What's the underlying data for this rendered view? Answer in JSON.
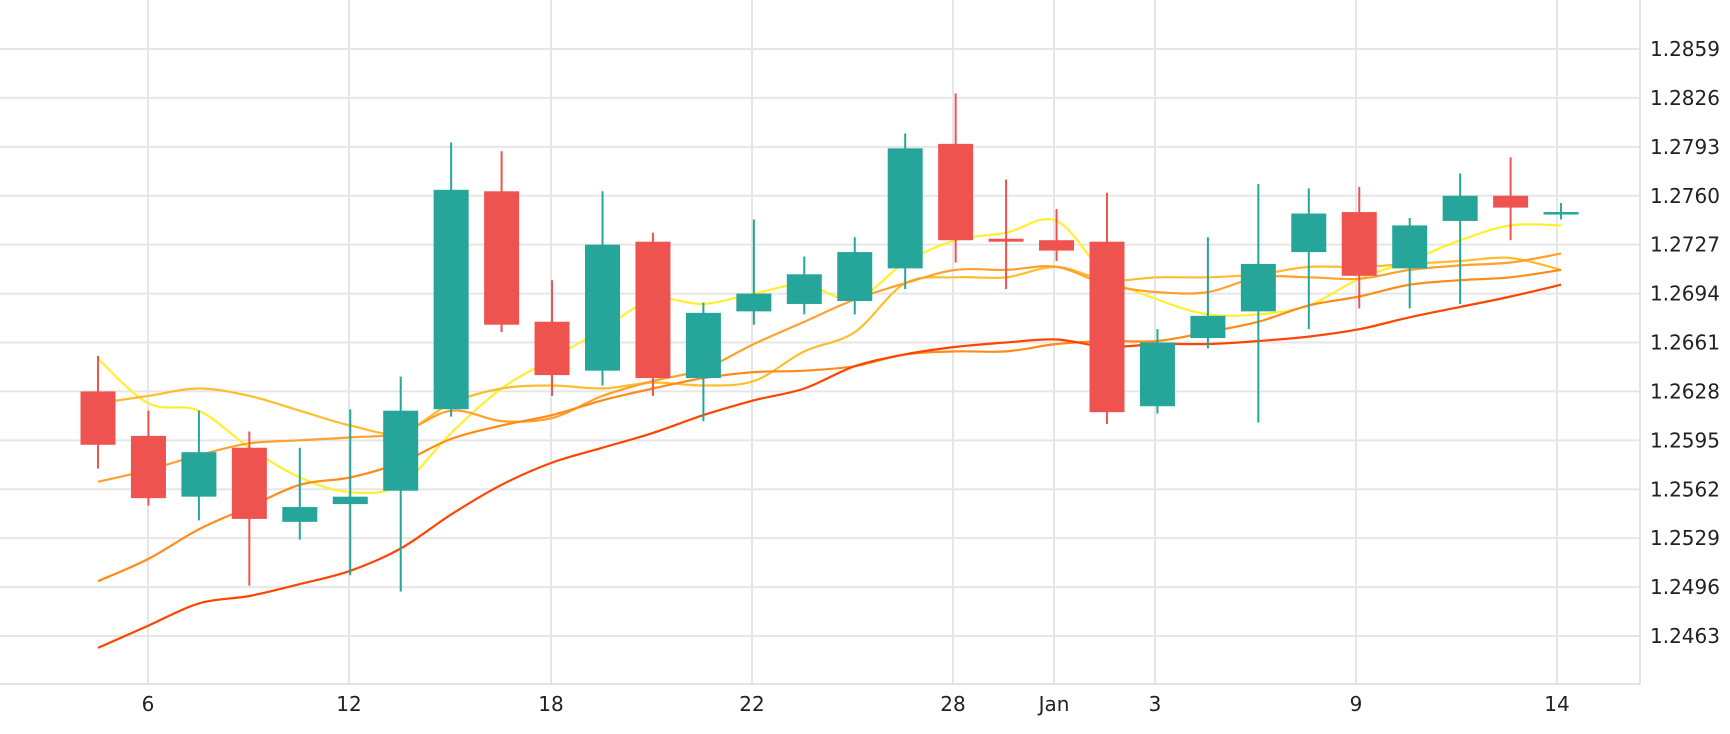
{
  "chart_data": {
    "type": "candlestick",
    "title": "",
    "xlabel": "",
    "ylabel": "",
    "colors": {
      "up": "#26a69a",
      "down": "#ef5350",
      "grid": "#e6e6e6"
    },
    "y_ticks": [
      "1.2463",
      "1.2496",
      "1.2529",
      "1.2562",
      "1.2595",
      "1.2628",
      "1.2661",
      "1.2694",
      "1.2727",
      "1.2760",
      "1.2793",
      "1.2826",
      "1.2859"
    ],
    "y_range": [
      1.243,
      1.2892
    ],
    "x_ticks": [
      {
        "label": "6",
        "at": "Dec 6"
      },
      {
        "label": "12",
        "at": "Dec 12"
      },
      {
        "label": "18",
        "at": "Dec 18"
      },
      {
        "label": "22",
        "at": "Dec 22"
      },
      {
        "label": "28",
        "at": "Dec 28"
      },
      {
        "label": "Jan",
        "at": "Jan 1"
      },
      {
        "label": "3",
        "at": "Jan 3"
      },
      {
        "label": "9",
        "at": "Jan 9"
      },
      {
        "label": "14",
        "at": "Jan 14"
      }
    ],
    "grid": true,
    "candles": [
      {
        "o": 1.2628,
        "h": 1.2652,
        "l": 1.2576,
        "c": 1.2592
      },
      {
        "o": 1.2598,
        "h": 1.2615,
        "l": 1.2551,
        "c": 1.2556
      },
      {
        "o": 1.2557,
        "h": 1.2615,
        "l": 1.2541,
        "c": 1.2587
      },
      {
        "o": 1.259,
        "h": 1.2601,
        "l": 1.2497,
        "c": 1.2542
      },
      {
        "o": 1.254,
        "h": 1.259,
        "l": 1.2528,
        "c": 1.255
      },
      {
        "o": 1.2552,
        "h": 1.2616,
        "l": 1.2504,
        "c": 1.2557
      },
      {
        "o": 1.2561,
        "h": 1.2638,
        "l": 1.2493,
        "c": 1.2615
      },
      {
        "o": 1.2616,
        "h": 1.2796,
        "l": 1.2611,
        "c": 1.2764
      },
      {
        "o": 1.2763,
        "h": 1.279,
        "l": 1.2668,
        "c": 1.2673
      },
      {
        "o": 1.2675,
        "h": 1.2703,
        "l": 1.2625,
        "c": 1.2639
      },
      {
        "o": 1.2642,
        "h": 1.2763,
        "l": 1.2632,
        "c": 1.2727
      },
      {
        "o": 1.2729,
        "h": 1.2735,
        "l": 1.2625,
        "c": 1.2637
      },
      {
        "o": 1.2637,
        "h": 1.2688,
        "l": 1.2608,
        "c": 1.2681
      },
      {
        "o": 1.2682,
        "h": 1.2744,
        "l": 1.2673,
        "c": 1.2694
      },
      {
        "o": 1.2687,
        "h": 1.2719,
        "l": 1.268,
        "c": 1.2707
      },
      {
        "o": 1.2689,
        "h": 1.2732,
        "l": 1.268,
        "c": 1.2722
      },
      {
        "o": 1.2711,
        "h": 1.2802,
        "l": 1.2697,
        "c": 1.2792
      },
      {
        "o": 1.2795,
        "h": 1.2829,
        "l": 1.2715,
        "c": 1.273
      },
      {
        "o": 1.2731,
        "h": 1.2771,
        "l": 1.2697,
        "c": 1.2729
      },
      {
        "o": 1.273,
        "h": 1.2751,
        "l": 1.2716,
        "c": 1.2723
      },
      {
        "o": 1.2729,
        "h": 1.2762,
        "l": 1.2606,
        "c": 1.2614
      },
      {
        "o": 1.2618,
        "h": 1.267,
        "l": 1.2613,
        "c": 1.2661
      },
      {
        "o": 1.2664,
        "h": 1.2732,
        "l": 1.2657,
        "c": 1.2679
      },
      {
        "o": 1.2682,
        "h": 1.2768,
        "l": 1.2607,
        "c": 1.2714
      },
      {
        "o": 1.2722,
        "h": 1.2765,
        "l": 1.267,
        "c": 1.2748
      },
      {
        "o": 1.2749,
        "h": 1.2766,
        "l": 1.2684,
        "c": 1.2706
      },
      {
        "o": 1.2711,
        "h": 1.2745,
        "l": 1.2684,
        "c": 1.274
      },
      {
        "o": 1.2743,
        "h": 1.2775,
        "l": 1.2687,
        "c": 1.276
      },
      {
        "o": 1.276,
        "h": 1.2786,
        "l": 1.273,
        "c": 1.2752
      },
      {
        "o": 1.2749,
        "h": 1.2755,
        "l": 1.2744,
        "c": 1.2749
      }
    ],
    "moving_averages": [
      {
        "color": "#ffef2e",
        "values": [
          1.265,
          1.262,
          1.2615,
          1.259,
          1.257,
          1.256,
          1.2565,
          1.26,
          1.263,
          1.265,
          1.267,
          1.269,
          1.2687,
          1.2694,
          1.27,
          1.269,
          1.2715,
          1.273,
          1.2735,
          1.2743,
          1.2706,
          1.269,
          1.268,
          1.268,
          1.2686,
          1.2704,
          1.2716,
          1.273,
          1.274,
          1.274
        ]
      },
      {
        "color": "#ffbd2e",
        "values": [
          1.262,
          1.2625,
          1.263,
          1.2625,
          1.2615,
          1.2605,
          1.26,
          1.262,
          1.263,
          1.2632,
          1.263,
          1.2634,
          1.2632,
          1.2635,
          1.2655,
          1.2668,
          1.2701,
          1.2705,
          1.2705,
          1.2712,
          1.2703,
          1.2705,
          1.2705,
          1.2707,
          1.2712,
          1.2712,
          1.2714,
          1.2716,
          1.2718,
          1.271
        ]
      },
      {
        "color": "#ffa12e",
        "values": [
          1.2567,
          1.2575,
          1.2585,
          1.2593,
          1.2595,
          1.2597,
          1.26,
          1.2615,
          1.2608,
          1.261,
          1.2625,
          1.2635,
          1.2643,
          1.266,
          1.2675,
          1.269,
          1.2701,
          1.271,
          1.271,
          1.2712,
          1.27,
          1.2695,
          1.2695,
          1.2705,
          1.2705,
          1.2704,
          1.271,
          1.2713,
          1.2715,
          1.2721
        ]
      },
      {
        "color": "#ff8c1a",
        "values": [
          1.25,
          1.2515,
          1.2535,
          1.255,
          1.2565,
          1.257,
          1.258,
          1.2596,
          1.2605,
          1.2612,
          1.2622,
          1.263,
          1.2637,
          1.2641,
          1.2642,
          1.2645,
          1.2653,
          1.2655,
          1.2655,
          1.266,
          1.2662,
          1.2662,
          1.2668,
          1.2675,
          1.2686,
          1.2692,
          1.27,
          1.2703,
          1.2705,
          1.271
        ]
      },
      {
        "color": "#ff4500",
        "values": [
          1.2455,
          1.247,
          1.2485,
          1.249,
          1.2498,
          1.2507,
          1.2522,
          1.2545,
          1.2565,
          1.258,
          1.259,
          1.26,
          1.2612,
          1.2622,
          1.263,
          1.2645,
          1.2653,
          1.2658,
          1.2661,
          1.2663,
          1.2658,
          1.266,
          1.266,
          1.2662,
          1.2665,
          1.267,
          1.2678,
          1.2685,
          1.2692,
          1.27
        ]
      }
    ]
  }
}
